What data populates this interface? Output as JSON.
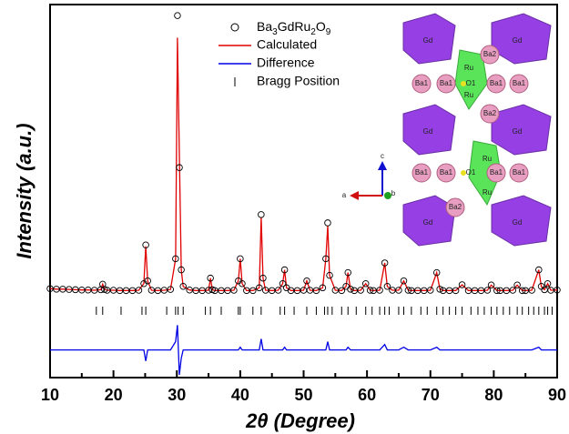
{
  "chart_data": {
    "type": "line",
    "xlabel": "2θ (Degree)",
    "ylabel": "Intensity (a.u.)",
    "xlim": [
      10,
      90
    ],
    "xticks": [
      10,
      20,
      30,
      40,
      50,
      60,
      70,
      80,
      90
    ],
    "xminorticks": [
      15,
      25,
      35,
      45,
      55,
      65,
      75,
      85
    ],
    "ylim": [
      -31,
      104
    ],
    "legend": "upper center",
    "x": [
      10,
      11,
      12,
      13,
      14,
      15,
      16,
      17,
      18,
      18.3,
      18.6,
      19,
      20,
      21,
      22,
      23,
      24,
      24.8,
      25.1,
      25.4,
      26,
      27,
      28,
      29,
      29.8,
      30.1,
      30.4,
      30.7,
      31,
      32,
      33,
      34,
      35,
      35.3,
      35.6,
      36,
      37,
      38,
      39,
      39.7,
      40,
      40.3,
      41,
      42,
      43,
      43.3,
      43.6,
      44,
      45,
      46,
      46.7,
      47,
      47.3,
      48,
      49,
      50,
      50.5,
      51,
      52,
      53,
      53.5,
      53.8,
      54.1,
      55,
      56,
      56.7,
      57,
      57.4,
      58,
      59,
      59.8,
      60.5,
      61,
      62,
      62.8,
      63.2,
      64,
      65,
      65.8,
      66.5,
      67,
      68,
      69,
      70,
      71,
      71.5,
      72,
      73,
      74,
      75,
      76,
      77,
      78,
      79,
      79.6,
      80.5,
      81,
      82,
      83,
      83.7,
      84.5,
      85,
      86,
      87.1,
      87.5,
      88,
      88.5,
      89,
      90
    ],
    "series": [
      {
        "name": "Ba3GdRu2O9",
        "color": "#000000",
        "marker": "circle",
        "values": [
          1.2,
          1,
          1,
          0.9,
          0.8,
          0.7,
          0.7,
          0.6,
          0.8,
          2.8,
          0.9,
          0.6,
          0.6,
          0.5,
          0.5,
          0.5,
          0.6,
          3,
          17,
          4,
          0.6,
          0.5,
          0.6,
          0.9,
          12,
          100,
          45,
          8,
          2,
          0.7,
          0.5,
          0.5,
          0.6,
          5,
          0.8,
          0.5,
          0.5,
          0.5,
          0.6,
          4,
          12,
          3,
          0.5,
          0.5,
          1.5,
          28,
          5,
          0.6,
          0.5,
          0.6,
          3,
          8,
          1.5,
          0.5,
          0.5,
          0.6,
          4,
          0.6,
          0.5,
          1.5,
          12,
          25,
          6,
          0.6,
          0.5,
          2,
          7,
          1,
          0.5,
          0.6,
          3,
          0.6,
          0.5,
          0.6,
          10.5,
          2,
          0.6,
          0.6,
          4,
          0.6,
          0.5,
          0.5,
          0.5,
          0.6,
          7,
          1,
          0.5,
          0.5,
          0.5,
          2.6,
          0.5,
          0.5,
          0.5,
          0.6,
          2.5,
          0.5,
          0.5,
          0.5,
          0.6,
          2.5,
          0.5,
          0.5,
          0.6,
          8,
          2,
          0.8,
          3,
          0.6,
          0.7
        ]
      },
      {
        "name": "Calculated",
        "color": "#e00000",
        "values": [
          1.2,
          1,
          1,
          0.9,
          0.8,
          0.7,
          0.7,
          0.6,
          0.8,
          2.8,
          0.9,
          0.6,
          0.6,
          0.5,
          0.5,
          0.5,
          0.6,
          3,
          16.5,
          4,
          0.6,
          0.5,
          0.6,
          0.9,
          12,
          92,
          50,
          8,
          2,
          0.7,
          0.5,
          0.5,
          0.6,
          5,
          0.8,
          0.5,
          0.5,
          0.5,
          0.6,
          4,
          12,
          3,
          0.5,
          0.5,
          1.5,
          27,
          5,
          0.6,
          0.5,
          0.6,
          3,
          8,
          1.5,
          0.5,
          0.5,
          0.6,
          4,
          0.6,
          0.5,
          1.5,
          12,
          24,
          6,
          0.6,
          0.5,
          2,
          7,
          1,
          0.5,
          0.6,
          3,
          0.6,
          0.5,
          0.6,
          10.5,
          2,
          0.6,
          0.6,
          4,
          0.6,
          0.5,
          0.5,
          0.5,
          0.6,
          7,
          1,
          0.5,
          0.5,
          0.5,
          2.6,
          0.5,
          0.5,
          0.5,
          0.6,
          2.5,
          0.5,
          0.5,
          0.5,
          0.6,
          2.5,
          0.5,
          0.5,
          0.6,
          8,
          2,
          0.8,
          3,
          0.6,
          0.7
        ]
      },
      {
        "name": "Difference",
        "color": "#0000e6",
        "values": [
          -21,
          -21,
          -21,
          -21,
          -21,
          -21,
          -21,
          -21,
          -21,
          -21,
          -21,
          -21,
          -21,
          -21,
          -21,
          -21,
          -21,
          -21,
          -25,
          -21,
          -21,
          -21,
          -21,
          -21,
          -18,
          -12,
          -30,
          -24,
          -21,
          -21,
          -21,
          -21,
          -21,
          -21,
          -21,
          -21,
          -21,
          -21,
          -21,
          -21,
          -20,
          -21,
          -21,
          -21,
          -21,
          -17,
          -21,
          -21,
          -21,
          -21,
          -21,
          -20,
          -21,
          -21,
          -21,
          -21,
          -21,
          -21,
          -21,
          -21,
          -21,
          -18,
          -21,
          -21,
          -21,
          -21,
          -20,
          -21,
          -21,
          -21,
          -21,
          -21,
          -21,
          -21,
          -19,
          -21,
          -21,
          -21,
          -20,
          -21,
          -21,
          -21,
          -21,
          -21,
          -20,
          -21,
          -21,
          -21,
          -21,
          -21,
          -21,
          -21,
          -21,
          -21,
          -21,
          -21,
          -21,
          -21,
          -21,
          -21,
          -21,
          -21,
          -21,
          -20,
          -21,
          -21,
          -21,
          -21,
          -21
        ]
      }
    ],
    "bragg": {
      "name": "Bragg Position",
      "color": "#000000",
      "x": [
        17.3,
        18.3,
        21.2,
        24.5,
        25.1,
        28.4,
        29.8,
        30.2,
        31,
        34.5,
        35.3,
        37,
        39.7,
        40,
        42,
        43.3,
        46.3,
        47,
        48.5,
        50.5,
        52,
        53.3,
        53.8,
        54.5,
        56,
        57,
        58.3,
        59.8,
        60.8,
        62,
        62.8,
        63.5,
        65,
        65.8,
        67,
        68.5,
        69.5,
        71,
        72,
        73,
        74,
        75,
        76.4,
        77.5,
        78.5,
        79.6,
        80.5,
        81.5,
        82.5,
        83.7,
        84.5,
        85.5,
        86.3,
        87.1,
        88,
        88.5,
        89.2
      ]
    }
  },
  "inset": {
    "labels": [
      "Gd",
      "Gd",
      "Gd",
      "Gd",
      "Gd",
      "Gd",
      "Ba1",
      "Ba1",
      "Ba1",
      "Ba1",
      "Ba1",
      "Ba1",
      "Ba1",
      "Ba1",
      "Ba2",
      "Ba2",
      "Ba2",
      "Ru",
      "Ru",
      "Ru",
      "Ru",
      "O1",
      "O1"
    ],
    "axis_labels": [
      "a",
      "b",
      "c"
    ]
  }
}
